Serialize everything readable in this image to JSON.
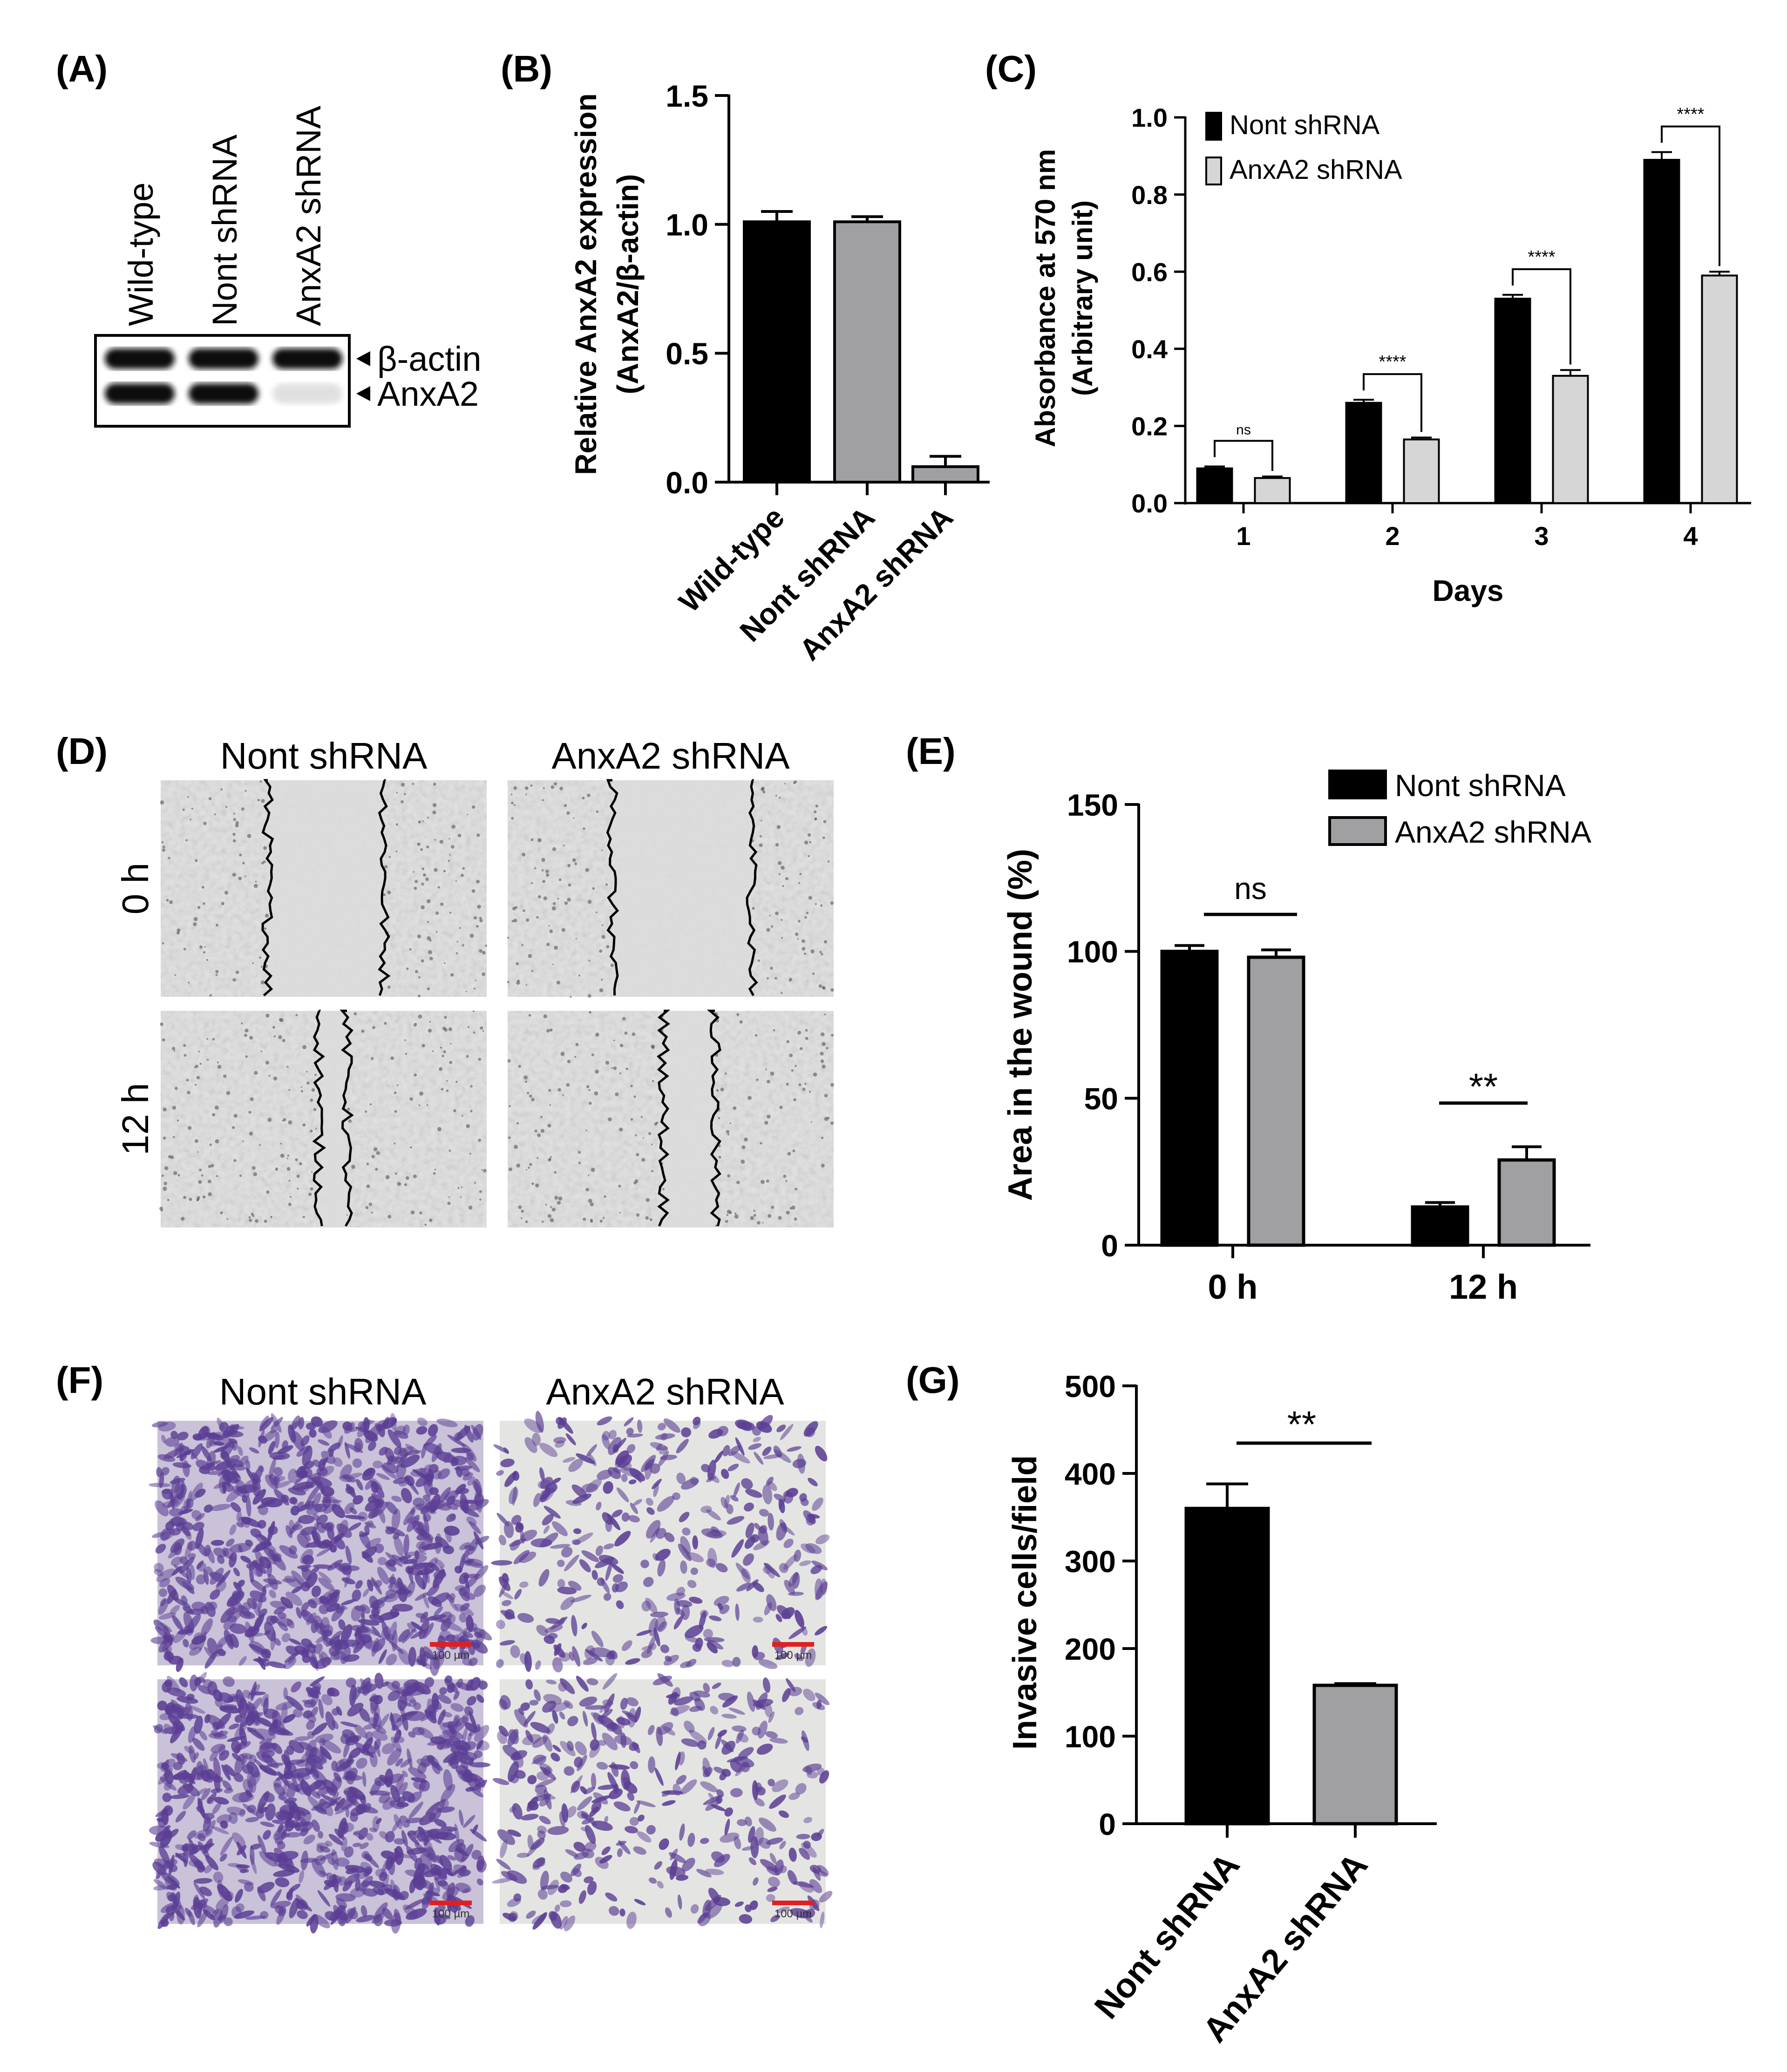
{
  "panel_labels": [
    "(A)",
    "(B)",
    "(C)",
    "(D)",
    "(E)",
    "(F)",
    "(G)"
  ],
  "blot": {
    "lanes": [
      "Wild-type",
      "Nont shRNA",
      "AnxA2 shRNA"
    ],
    "markers": [
      "β-actin",
      "AnxA2"
    ],
    "anxa2_band_intensity": [
      1.0,
      1.0,
      0.06
    ]
  },
  "wound_images": {
    "columns": [
      "Nont shRNA",
      "AnxA2 shRNA"
    ],
    "rows": [
      "0 h",
      "12 h"
    ]
  },
  "invasion_images": {
    "columns": [
      "Nont shRNA",
      "AnxA2 shRNA"
    ],
    "scale_label": "100 µm"
  },
  "colors": {
    "black_bar": "#000000",
    "grey_bar": "#a0a0a3",
    "light_bar": "#d6d6d6",
    "stain": "#5b3e94",
    "scale": "#e02020"
  },
  "chart_data": [
    {
      "panel": "B",
      "type": "bar",
      "categories": [
        "Wild-type",
        "Nont shRNA",
        "AnxA2 shRNA"
      ],
      "values": [
        1.01,
        1.01,
        0.06
      ],
      "errors": [
        0.04,
        0.02,
        0.04
      ],
      "bar_colors": [
        "#000000",
        "#a0a0a3",
        "#a0a0a3"
      ],
      "ylabel_lines": [
        "Relative AnxA2 expression",
        "(AnxA2/β-actin)"
      ],
      "ylim": [
        0,
        1.5
      ],
      "yticks": [
        "0.0",
        "0.5",
        "1.0",
        "1.5"
      ]
    },
    {
      "panel": "C",
      "type": "bar",
      "categories": [
        "1",
        "2",
        "3",
        "4"
      ],
      "series": [
        {
          "name": "Nont shRNA",
          "values": [
            0.09,
            0.26,
            0.53,
            0.89
          ],
          "errors": [
            0.005,
            0.008,
            0.01,
            0.02
          ],
          "color": "#000000"
        },
        {
          "name": "AnxA2 shRNA",
          "values": [
            0.065,
            0.165,
            0.33,
            0.59
          ],
          "errors": [
            0.004,
            0.005,
            0.015,
            0.01
          ],
          "color": "#d6d6d6"
        }
      ],
      "significance": [
        "ns",
        "****",
        "****",
        "****"
      ],
      "ylabel_lines": [
        "Absorbance at 570 nm",
        "(Arbitrary unit)"
      ],
      "xlabel": "Days",
      "ylim": [
        0,
        1.0
      ],
      "yticks": [
        "0.0",
        "0.2",
        "0.4",
        "0.6",
        "0.8",
        "1.0"
      ],
      "legend": "top-left"
    },
    {
      "panel": "E",
      "type": "bar",
      "categories": [
        "0 h",
        "12 h"
      ],
      "series": [
        {
          "name": "Nont shRNA",
          "values": [
            100,
            13
          ],
          "errors": [
            2,
            1.5
          ],
          "color": "#000000"
        },
        {
          "name": "AnxA2 shRNA",
          "values": [
            98,
            29
          ],
          "errors": [
            2.5,
            4.5
          ],
          "color": "#a0a0a3"
        }
      ],
      "significance": [
        "ns",
        "**"
      ],
      "ylabel": "Area in the wound (%)",
      "ylim": [
        0,
        150
      ],
      "yticks": [
        "0",
        "50",
        "100",
        "150"
      ],
      "legend": "top-right"
    },
    {
      "panel": "G",
      "type": "bar",
      "categories": [
        "Nont shRNA",
        "AnxA2 shRNA"
      ],
      "values": [
        360,
        158
      ],
      "errors": [
        28,
        2
      ],
      "bar_colors": [
        "#000000",
        "#a0a0a3"
      ],
      "significance": "**",
      "ylabel": "Invasive cells/field",
      "ylim": [
        0,
        500
      ],
      "yticks": [
        "0",
        "100",
        "200",
        "300",
        "400",
        "500"
      ]
    }
  ]
}
